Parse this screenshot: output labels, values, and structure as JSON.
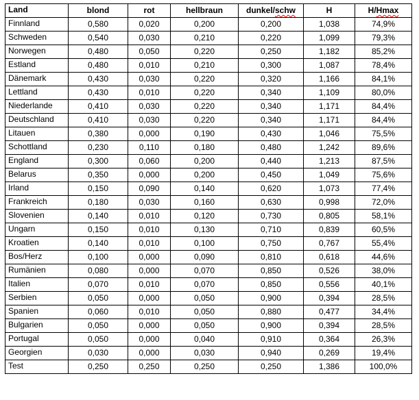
{
  "table": {
    "spellcheck_color": "#ff0000",
    "border_color": "#000000",
    "columns": [
      {
        "label": "Land"
      },
      {
        "label": "blond"
      },
      {
        "label": "rot"
      },
      {
        "label": "hellbraun"
      },
      {
        "label": "dunkel/schw",
        "plain": "dunkel/",
        "misspelled": "schw"
      },
      {
        "label": "H"
      },
      {
        "label": "H/Hmax",
        "plain": "H/",
        "misspelled": "Hmax"
      }
    ],
    "rows": [
      [
        "Finnland",
        "0,580",
        "0,020",
        "0,200",
        "0,200",
        "1,038",
        "74,9%"
      ],
      [
        "Schweden",
        "0,540",
        "0,030",
        "0,210",
        "0,220",
        "1,099",
        "79,3%"
      ],
      [
        "Norwegen",
        "0,480",
        "0,050",
        "0,220",
        "0,250",
        "1,182",
        "85,2%"
      ],
      [
        "Estland",
        "0,480",
        "0,010",
        "0,210",
        "0,300",
        "1,087",
        "78,4%"
      ],
      [
        "Dänemark",
        "0,430",
        "0,030",
        "0,220",
        "0,320",
        "1,166",
        "84,1%"
      ],
      [
        "Lettland",
        "0,430",
        "0,010",
        "0,220",
        "0,340",
        "1,109",
        "80,0%"
      ],
      [
        "Niederlande",
        "0,410",
        "0,030",
        "0,220",
        "0,340",
        "1,171",
        "84,4%"
      ],
      [
        "Deutschland",
        "0,410",
        "0,030",
        "0,220",
        "0,340",
        "1,171",
        "84,4%"
      ],
      [
        "Litauen",
        "0,380",
        "0,000",
        "0,190",
        "0,430",
        "1,046",
        "75,5%"
      ],
      [
        "Schottland",
        "0,230",
        "0,110",
        "0,180",
        "0,480",
        "1,242",
        "89,6%"
      ],
      [
        "England",
        "0,300",
        "0,060",
        "0,200",
        "0,440",
        "1,213",
        "87,5%"
      ],
      [
        "Belarus",
        "0,350",
        "0,000",
        "0,200",
        "0,450",
        "1,049",
        "75,6%"
      ],
      [
        "Irland",
        "0,150",
        "0,090",
        "0,140",
        "0,620",
        "1,073",
        "77,4%"
      ],
      [
        "Frankreich",
        "0,180",
        "0,030",
        "0,160",
        "0,630",
        "0,998",
        "72,0%"
      ],
      [
        "Slovenien",
        "0,140",
        "0,010",
        "0,120",
        "0,730",
        "0,805",
        "58,1%"
      ],
      [
        "Ungarn",
        "0,150",
        "0,010",
        "0,130",
        "0,710",
        "0,839",
        "60,5%"
      ],
      [
        "Kroatien",
        "0,140",
        "0,010",
        "0,100",
        "0,750",
        "0,767",
        "55,4%"
      ],
      [
        "Bos/Herz",
        "0,100",
        "0,000",
        "0,090",
        "0,810",
        "0,618",
        "44,6%"
      ],
      [
        "Rumänien",
        "0,080",
        "0,000",
        "0,070",
        "0,850",
        "0,526",
        "38,0%"
      ],
      [
        "Italien",
        "0,070",
        "0,010",
        "0,070",
        "0,850",
        "0,556",
        "40,1%"
      ],
      [
        "Serbien",
        "0,050",
        "0,000",
        "0,050",
        "0,900",
        "0,394",
        "28,5%"
      ],
      [
        "Spanien",
        "0,060",
        "0,010",
        "0,050",
        "0,880",
        "0,477",
        "34,4%"
      ],
      [
        "Bulgarien",
        "0,050",
        "0,000",
        "0,050",
        "0,900",
        "0,394",
        "28,5%"
      ],
      [
        "Portugal",
        "0,050",
        "0,000",
        "0,040",
        "0,910",
        "0,364",
        "26,3%"
      ],
      [
        "Georgien",
        "0,030",
        "0,000",
        "0,030",
        "0,940",
        "0,269",
        "19,4%"
      ],
      [
        "Test",
        "0,250",
        "0,250",
        "0,250",
        "0,250",
        "1,386",
        "100,0%"
      ]
    ]
  }
}
